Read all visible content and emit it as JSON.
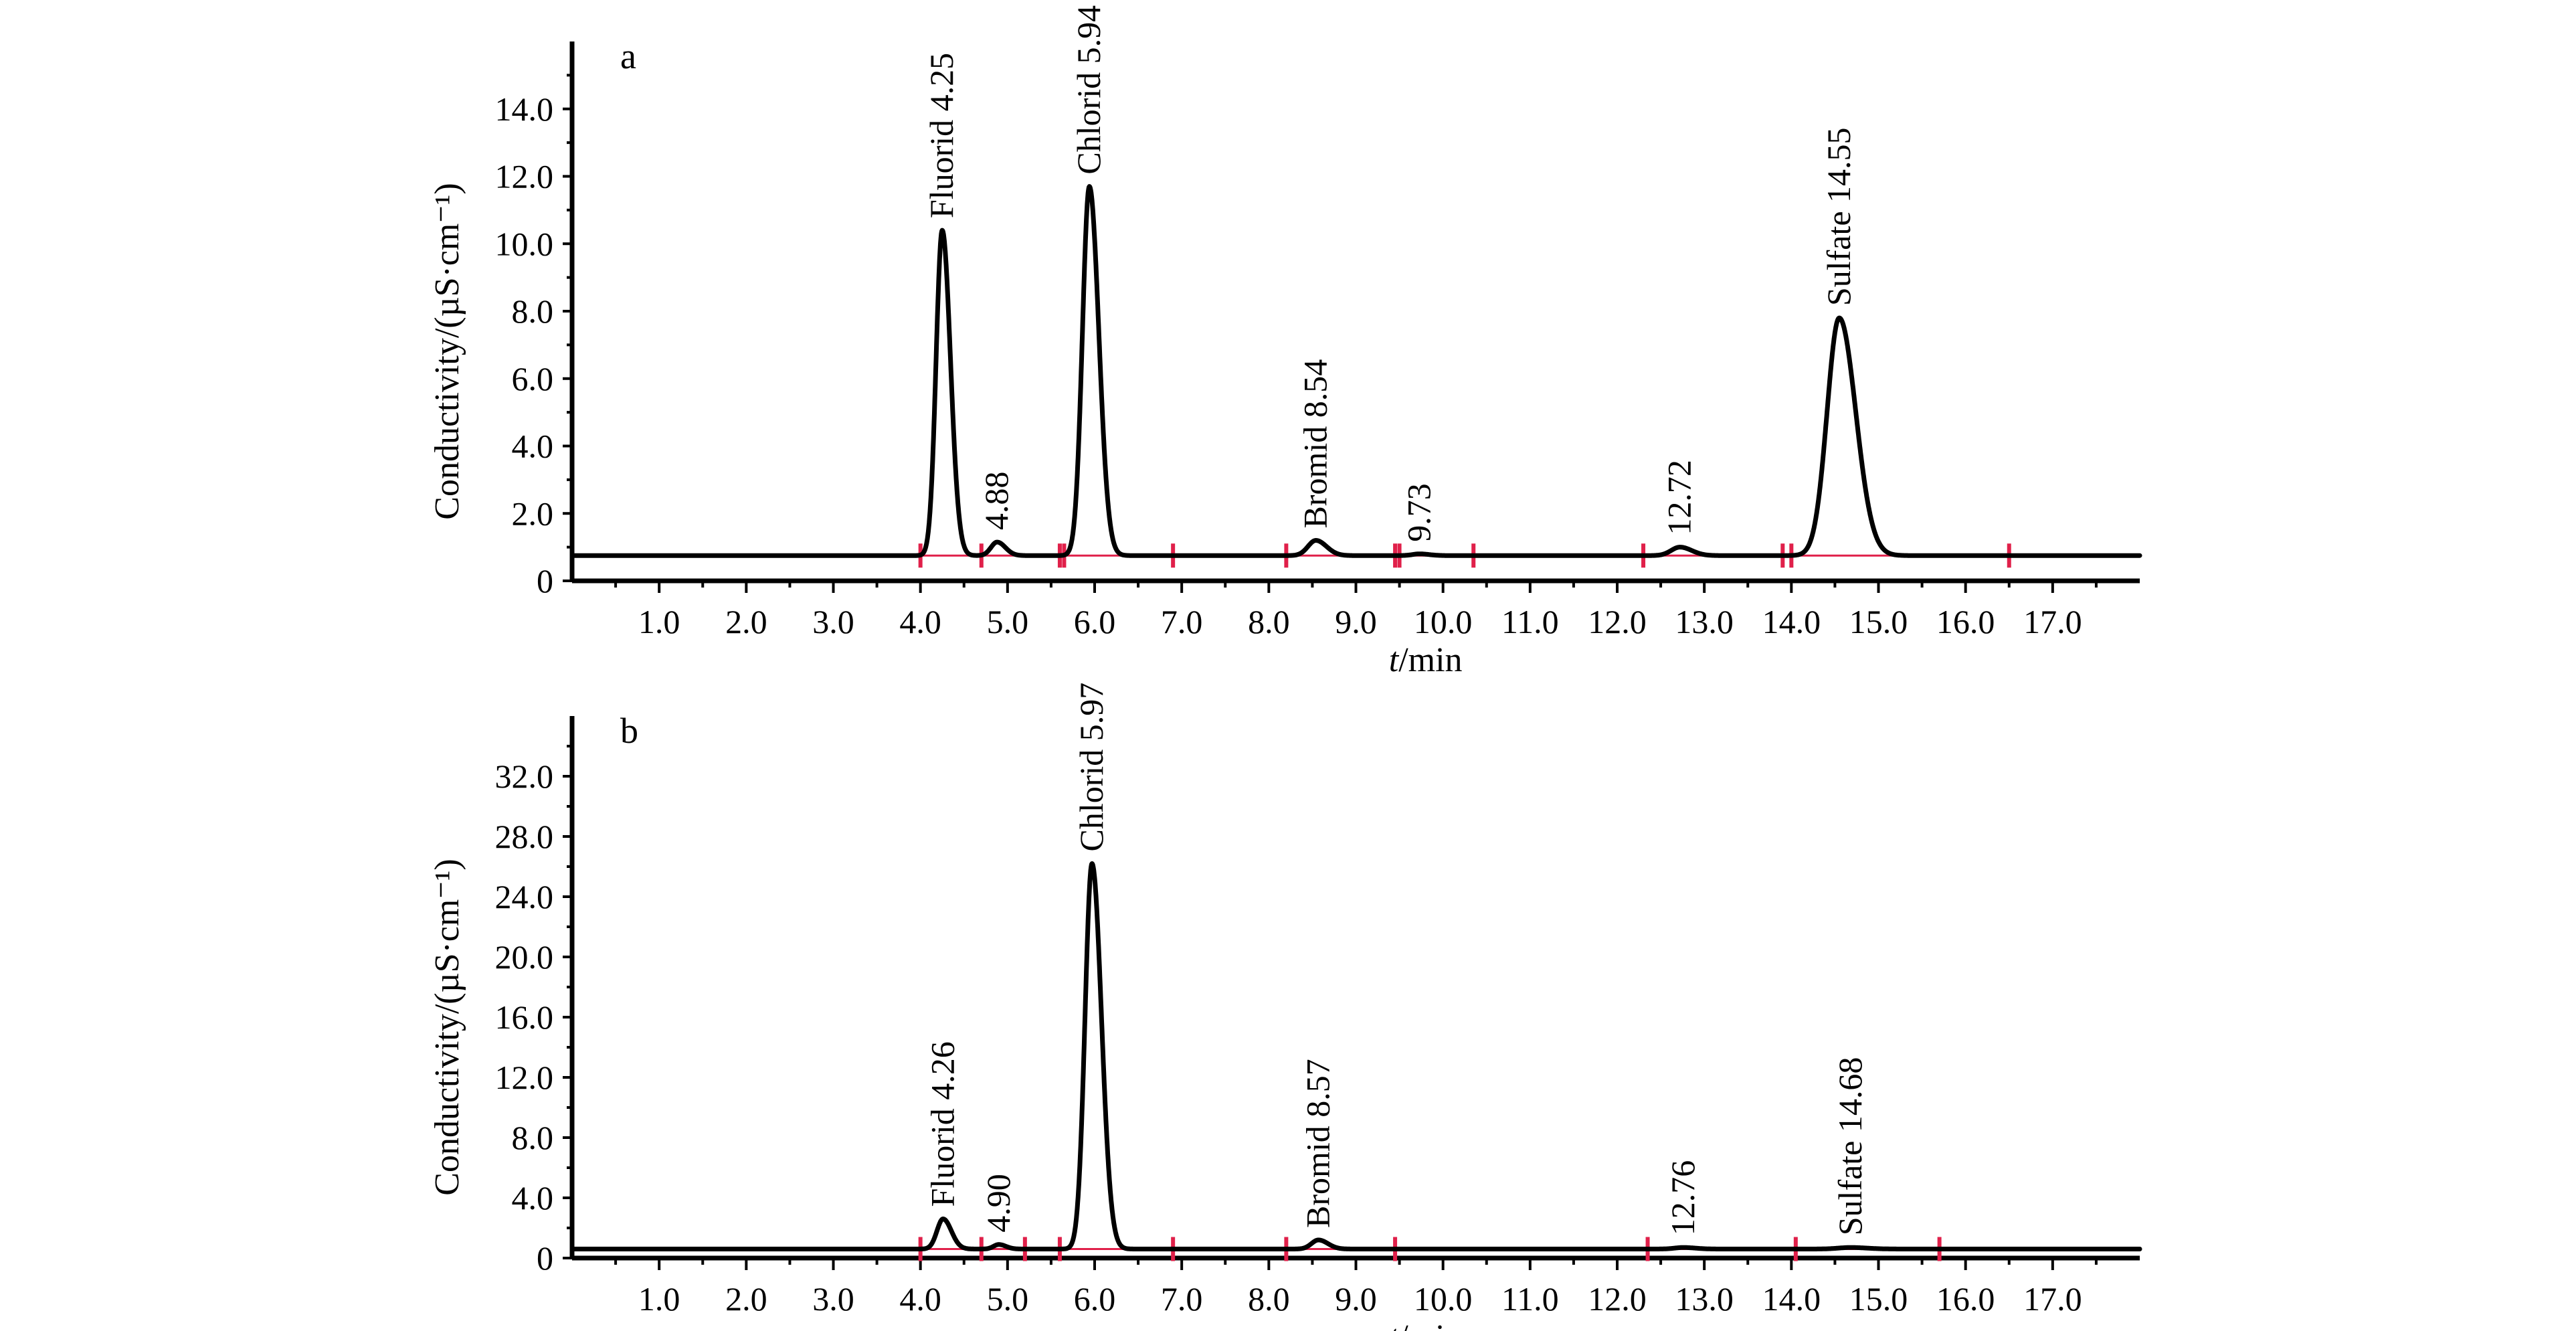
{
  "chart_data": [
    {
      "type": "line",
      "panel_label": "a",
      "xlabel_italic": "t",
      "xlabel_unit": "/min",
      "ylabel": "Conductivity/(µS·cm⁻¹)",
      "xlim": [
        0,
        18
      ],
      "ylim": [
        0,
        16
      ],
      "x_ticks": [
        "1.0",
        "2.0",
        "3.0",
        "4.0",
        "5.0",
        "6.0",
        "7.0",
        "8.0",
        "9.0",
        "10.0",
        "11.0",
        "12.0",
        "13.0",
        "14.0",
        "15.0",
        "16.0",
        "17.0"
      ],
      "x_tick_values": [
        1,
        2,
        3,
        4,
        5,
        6,
        7,
        8,
        9,
        10,
        11,
        12,
        13,
        14,
        15,
        16,
        17
      ],
      "y_ticks": [
        "0",
        "2.0",
        "4.0",
        "6.0",
        "8.0",
        "10.0",
        "12.0",
        "14.0"
      ],
      "y_tick_values": [
        0,
        2,
        4,
        6,
        8,
        10,
        12,
        14
      ],
      "baseline": 0.75,
      "peaks": [
        {
          "label": "Fluorid 4.25",
          "rt": 4.25,
          "height": 10.4,
          "width": 0.07
        },
        {
          "label": "4.88",
          "rt": 4.88,
          "height": 1.15,
          "width": 0.07
        },
        {
          "label": "Chlorid 5.94",
          "rt": 5.94,
          "height": 11.7,
          "width": 0.08
        },
        {
          "label": "Bromid 8.54",
          "rt": 8.54,
          "height": 1.2,
          "width": 0.09
        },
        {
          "label": "9.73",
          "rt": 9.73,
          "height": 0.8,
          "width": 0.08
        },
        {
          "label": "12.72",
          "rt": 12.72,
          "height": 1.0,
          "width": 0.1
        },
        {
          "label": "Sulfate 14.55",
          "rt": 14.55,
          "height": 7.8,
          "width": 0.14
        }
      ],
      "integration_markers": [
        4.0,
        4.7,
        5.6,
        5.65,
        6.9,
        8.2,
        9.45,
        9.5,
        10.35,
        12.3,
        13.9,
        14.0,
        16.5
      ]
    },
    {
      "type": "line",
      "panel_label": "b",
      "xlabel_italic": "t",
      "xlabel_unit": "/min",
      "ylabel": "Conductivity/(µS·cm⁻¹)",
      "xlim": [
        0,
        18
      ],
      "ylim": [
        0,
        36
      ],
      "x_ticks": [
        "1.0",
        "2.0",
        "3.0",
        "4.0",
        "5.0",
        "6.0",
        "7.0",
        "8.0",
        "9.0",
        "10.0",
        "11.0",
        "12.0",
        "13.0",
        "14.0",
        "15.0",
        "16.0",
        "17.0"
      ],
      "x_tick_values": [
        1,
        2,
        3,
        4,
        5,
        6,
        7,
        8,
        9,
        10,
        11,
        12,
        13,
        14,
        15,
        16,
        17
      ],
      "y_ticks": [
        "0",
        "4.0",
        "8.0",
        "12.0",
        "16.0",
        "20.0",
        "24.0",
        "28.0",
        "32.0"
      ],
      "y_tick_values": [
        0,
        4,
        8,
        12,
        16,
        20,
        24,
        28,
        32
      ],
      "baseline": 0.6,
      "peaks": [
        {
          "label": "Fluorid 4.26",
          "rt": 4.26,
          "height": 2.6,
          "width": 0.07
        },
        {
          "label": "4.90",
          "rt": 4.9,
          "height": 0.9,
          "width": 0.06
        },
        {
          "label": "Chlorid 5.97",
          "rt": 5.97,
          "height": 26.2,
          "width": 0.08
        },
        {
          "label": "Bromid 8.57",
          "rt": 8.57,
          "height": 1.2,
          "width": 0.08
        },
        {
          "label": "12.76",
          "rt": 12.76,
          "height": 0.7,
          "width": 0.1
        },
        {
          "label": "Sulfate 14.68",
          "rt": 14.68,
          "height": 0.7,
          "width": 0.14
        }
      ],
      "integration_markers": [
        4.0,
        4.7,
        5.2,
        5.6,
        6.9,
        8.2,
        9.45,
        12.35,
        14.05,
        15.7
      ]
    }
  ],
  "colors": {
    "trace": "#000000",
    "integration_baseline": "#e0204a"
  }
}
